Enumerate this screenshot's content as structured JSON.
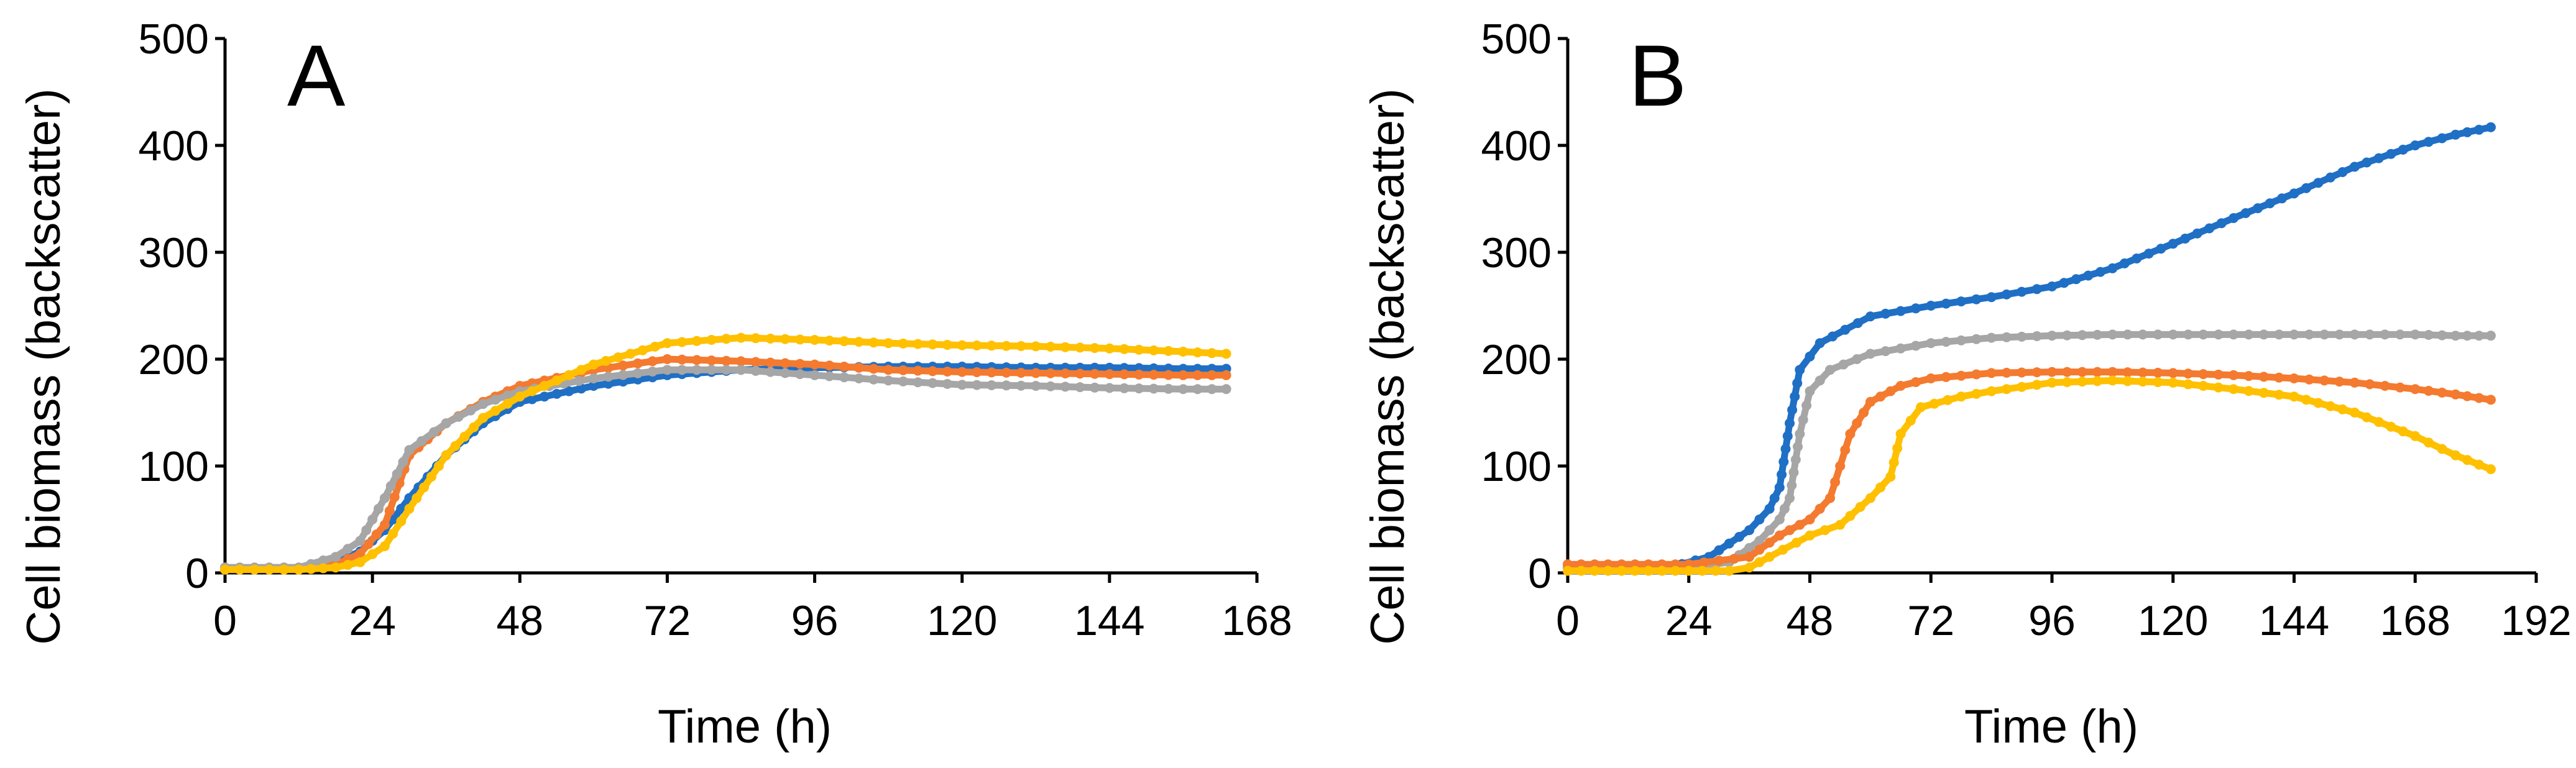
{
  "chart_data": [
    {
      "type": "line",
      "panel_label": "A",
      "xlabel": "Time (h)",
      "ylabel": "Cell biomass (backscatter)",
      "xlim": [
        0,
        168
      ],
      "ylim": [
        0,
        500
      ],
      "xticks": [
        0,
        24,
        48,
        72,
        96,
        120,
        144,
        168
      ],
      "yticks": [
        0,
        100,
        200,
        300,
        400,
        500
      ],
      "grid": false,
      "legend": "none",
      "series": [
        {
          "color": "#1F6FC5",
          "x": [
            0,
            12,
            18,
            22,
            26,
            30,
            36,
            42,
            48,
            60,
            72,
            84,
            96,
            108,
            120,
            132,
            144,
            156,
            163
          ],
          "y": [
            5,
            5,
            10,
            20,
            40,
            70,
            110,
            140,
            160,
            175,
            185,
            190,
            192,
            193,
            193,
            192,
            192,
            191,
            191
          ]
        },
        {
          "color": "#F47A2F",
          "x": [
            0,
            12,
            18,
            22,
            26,
            30,
            36,
            42,
            48,
            60,
            72,
            84,
            96,
            108,
            120,
            132,
            144,
            156,
            163
          ],
          "y": [
            5,
            5,
            8,
            18,
            45,
            110,
            140,
            160,
            175,
            190,
            200,
            198,
            195,
            190,
            188,
            187,
            186,
            185,
            185
          ]
        },
        {
          "color": "#A6A6A6",
          "x": [
            0,
            12,
            18,
            22,
            26,
            30,
            36,
            42,
            48,
            60,
            72,
            84,
            96,
            108,
            120,
            132,
            144,
            156,
            163
          ],
          "y": [
            5,
            5,
            15,
            30,
            70,
            115,
            140,
            158,
            170,
            182,
            190,
            190,
            185,
            180,
            176,
            175,
            173,
            172,
            172
          ]
        },
        {
          "color": "#FFC000",
          "x": [
            0,
            12,
            18,
            22,
            26,
            30,
            36,
            42,
            48,
            60,
            72,
            84,
            96,
            108,
            120,
            132,
            144,
            156,
            163
          ],
          "y": [
            3,
            3,
            5,
            10,
            25,
            60,
            110,
            145,
            165,
            195,
            215,
            220,
            218,
            215,
            213,
            212,
            210,
            207,
            205
          ]
        }
      ]
    },
    {
      "type": "line",
      "panel_label": "B",
      "xlabel": "Time (h)",
      "ylabel": "Cell biomass (backscatter)",
      "xlim": [
        0,
        192
      ],
      "ylim": [
        0,
        500
      ],
      "xticks": [
        0,
        24,
        48,
        72,
        96,
        120,
        144,
        168,
        192
      ],
      "yticks": [
        0,
        100,
        200,
        300,
        400,
        500
      ],
      "grid": false,
      "legend": "none",
      "series": [
        {
          "color": "#1F6FC5",
          "x": [
            0,
            20,
            28,
            36,
            40,
            42,
            44,
            46,
            50,
            60,
            72,
            84,
            96,
            108,
            120,
            132,
            144,
            156,
            168,
            176,
            183
          ],
          "y": [
            5,
            5,
            15,
            40,
            60,
            80,
            140,
            190,
            215,
            240,
            250,
            258,
            268,
            285,
            308,
            332,
            355,
            380,
            400,
            410,
            417
          ]
        },
        {
          "color": "#A6A6A6",
          "x": [
            0,
            24,
            32,
            38,
            42,
            44,
            46,
            48,
            52,
            60,
            72,
            84,
            96,
            108,
            120,
            132,
            144,
            156,
            168,
            176,
            183
          ],
          "y": [
            5,
            5,
            10,
            30,
            50,
            70,
            130,
            170,
            190,
            205,
            215,
            220,
            222,
            223,
            223,
            223,
            223,
            223,
            223,
            222,
            222
          ]
        },
        {
          "color": "#F47A2F",
          "x": [
            0,
            24,
            36,
            42,
            48,
            52,
            54,
            56,
            60,
            66,
            72,
            84,
            96,
            108,
            120,
            132,
            144,
            156,
            168,
            176,
            183
          ],
          "y": [
            8,
            8,
            15,
            35,
            50,
            70,
            100,
            130,
            160,
            175,
            182,
            187,
            188,
            188,
            187,
            185,
            182,
            178,
            172,
            167,
            162
          ]
        },
        {
          "color": "#FFC000",
          "x": [
            0,
            24,
            32,
            36,
            40,
            48,
            54,
            60,
            64,
            66,
            70,
            78,
            84,
            96,
            108,
            120,
            132,
            144,
            156,
            168,
            176,
            183
          ],
          "y": [
            2,
            2,
            2,
            5,
            15,
            35,
            45,
            70,
            90,
            130,
            155,
            165,
            170,
            178,
            180,
            178,
            172,
            165,
            150,
            128,
            110,
            97
          ]
        }
      ]
    }
  ]
}
